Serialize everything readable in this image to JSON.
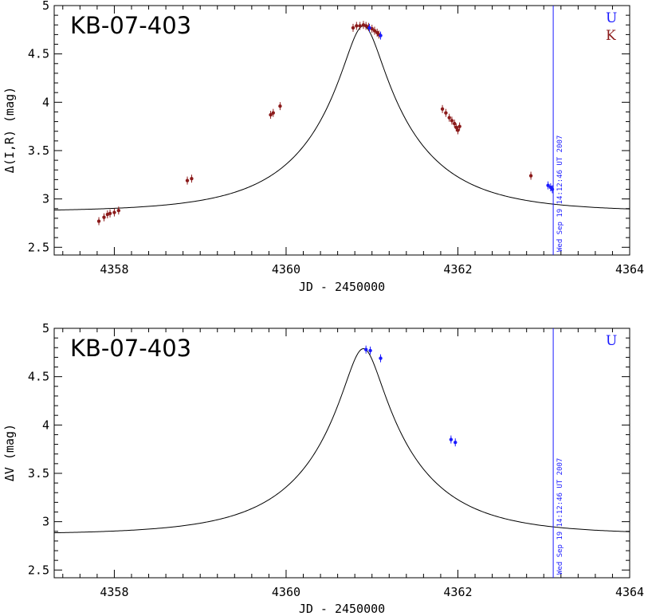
{
  "colors": {
    "U": "#1a1aff",
    "K": "#8b1a1a",
    "model": "#000000",
    "marker_line": "#1a1aff"
  },
  "chart_data": [
    {
      "type": "scatter",
      "title": "KB-07-403",
      "xlabel": "JD - 2450000",
      "ylabel": "Δ(I,R) (mag)",
      "xlim": [
        4357.3,
        4364
      ],
      "ylim": [
        2.42,
        5
      ],
      "xticks": [
        4358,
        4360,
        4362,
        4364
      ],
      "xtick_labels": [
        "4358",
        "4360",
        "4362",
        "4364"
      ],
      "yticks": [
        2.5,
        3,
        3.5,
        4,
        4.5,
        5
      ],
      "ytick_labels": [
        "2.5",
        "3",
        "3.5",
        "4",
        "4.5",
        "5"
      ],
      "legend": [
        "U",
        "K"
      ],
      "legend_position": "top-right",
      "vline": {
        "x": 4363.11,
        "label": "Wed Sep 19 14:12:46 UT 2007"
      },
      "model": {
        "t0": 4360.9,
        "tE": 1.2,
        "u0": 0.172,
        "peak": 4.79
      },
      "series": [
        {
          "name": "K",
          "color_key": "K",
          "x": [
            4357.82,
            4357.88,
            4357.92,
            4357.95,
            4358.0,
            4358.05,
            4358.85,
            4358.9,
            4359.82,
            4359.85,
            4359.93,
            4360.78,
            4360.82,
            4360.86,
            4360.9,
            4360.93,
            4360.96,
            4361.0,
            4361.03,
            4361.06,
            4361.08,
            4361.82,
            4361.86,
            4361.9,
            4361.93,
            4361.96,
            4361.98,
            4362.0,
            4362.02,
            4362.85
          ],
          "y": [
            2.77,
            2.81,
            2.84,
            2.85,
            2.86,
            2.88,
            3.19,
            3.21,
            3.87,
            3.89,
            3.96,
            4.77,
            4.79,
            4.79,
            4.8,
            4.79,
            4.78,
            4.76,
            4.74,
            4.72,
            4.7,
            3.93,
            3.89,
            3.84,
            3.81,
            3.78,
            3.74,
            3.71,
            3.75,
            3.24
          ]
        },
        {
          "name": "U",
          "color_key": "U",
          "x": [
            4360.97,
            4361.1,
            4363.05,
            4363.08,
            4363.1
          ],
          "y": [
            4.77,
            4.69,
            3.14,
            3.12,
            3.1
          ]
        }
      ]
    },
    {
      "type": "scatter",
      "title": "KB-07-403",
      "xlabel": "JD - 2450000",
      "ylabel": "ΔV (mag)",
      "xlim": [
        4357.3,
        4364
      ],
      "ylim": [
        2.42,
        5
      ],
      "xticks": [
        4358,
        4360,
        4362,
        4364
      ],
      "xtick_labels": [
        "4358",
        "4360",
        "4362",
        "4364"
      ],
      "yticks": [
        2.5,
        3,
        3.5,
        4,
        4.5,
        5
      ],
      "ytick_labels": [
        "2.5",
        "3",
        "3.5",
        "4",
        "4.5",
        "5"
      ],
      "legend": [
        "U"
      ],
      "legend_position": "top-right",
      "vline": {
        "x": 4363.11,
        "label": "Wed Sep 19 14:12:46 UT 2007"
      },
      "model": {
        "t0": 4360.9,
        "tE": 1.2,
        "u0": 0.172,
        "peak": 4.79
      },
      "series": [
        {
          "name": "U",
          "color_key": "U",
          "x": [
            4360.93,
            4360.98,
            4361.1,
            4361.92,
            4361.97
          ],
          "y": [
            4.78,
            4.77,
            4.69,
            3.85,
            3.82
          ]
        }
      ]
    }
  ]
}
